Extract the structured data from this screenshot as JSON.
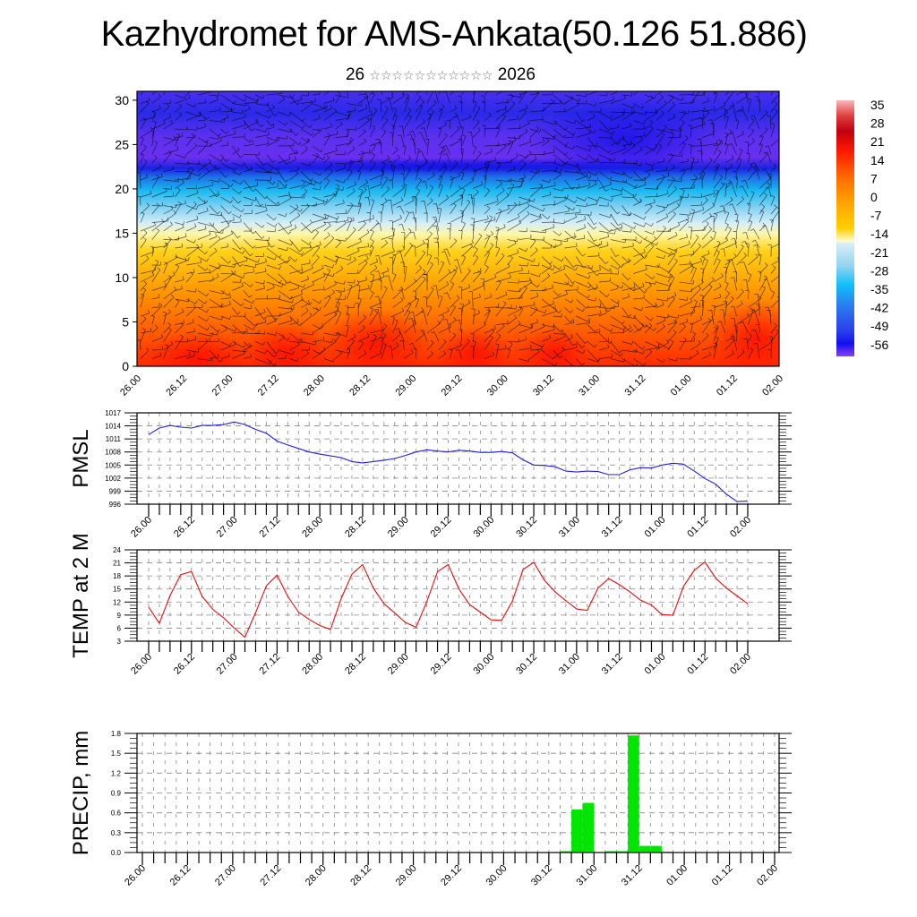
{
  "title": "Kazhydromet for AMS-Ankata(50.126 51.886)",
  "subtitle": {
    "day": "26",
    "month_glyphs": "☆☆☆☆☆☆☆☆☆☆☆",
    "year": "2026"
  },
  "colors": {
    "pmsl_line": "#1f1fe0",
    "temp_line": "#e01010",
    "precip_bar": "#00e600",
    "grid": "#888888"
  },
  "time_ticks": [
    "26.00",
    "26.12",
    "27.00",
    "27.12",
    "28.00",
    "28.12",
    "29.00",
    "29.12",
    "30.00",
    "30.12",
    "31.00",
    "31.12",
    "01.00",
    "01.12",
    "02.00"
  ],
  "chart_data": [
    {
      "type": "heatmap",
      "name": "cross-section",
      "ylabel": "",
      "xlabel": "",
      "ylim": [
        0,
        31
      ],
      "y_ticks": [
        "0",
        "5",
        "10",
        "15",
        "20",
        "25",
        "30"
      ],
      "colorbar": {
        "labels": [
          "35",
          "28",
          "21",
          "14",
          "7",
          "0",
          "-7",
          "-14",
          "-21",
          "-28",
          "-35",
          "-42",
          "-49",
          "-56"
        ],
        "range": [
          -60,
          38
        ]
      },
      "description_levels": {
        "surface_band": "warm (14..28)",
        "tropopause_approx_height": 15
      }
    },
    {
      "type": "line",
      "name": "PMSL",
      "ylabel": "PMSL",
      "ylim": [
        996,
        1017
      ],
      "y_ticks": [
        "996",
        "999",
        "1002",
        "1005",
        "1008",
        "1011",
        "1014",
        "1017"
      ],
      "step_hours": 3,
      "values": [
        1012.0,
        1013.5,
        1014.1,
        1013.7,
        1013.5,
        1014.1,
        1014.1,
        1014.3,
        1014.9,
        1014.3,
        1013.2,
        1012.3,
        1010.5,
        1009.6,
        1008.8,
        1008.0,
        1007.5,
        1007.1,
        1006.7,
        1005.8,
        1005.5,
        1005.8,
        1006.1,
        1006.5,
        1007.2,
        1008.0,
        1008.5,
        1008.2,
        1008.0,
        1008.4,
        1008.2,
        1007.9,
        1007.9,
        1008.1,
        1007.8,
        1006.2,
        1005.0,
        1004.9,
        1004.6,
        1003.6,
        1003.4,
        1003.6,
        1003.5,
        1002.8,
        1002.8,
        1003.9,
        1004.4,
        1004.3,
        1005.0,
        1005.4,
        1005.2,
        1003.6,
        1001.9,
        1000.6,
        998.3,
        996.6,
        996.7
      ]
    },
    {
      "type": "line",
      "name": "TEMP",
      "ylabel": "TEMP at 2 M",
      "ylim": [
        3,
        24
      ],
      "y_ticks": [
        "3",
        "6",
        "9",
        "12",
        "15",
        "18",
        "21",
        "24"
      ],
      "step_hours": 3,
      "values": [
        10.8,
        7.1,
        13.5,
        18.3,
        19.0,
        13.3,
        10.3,
        8.4,
        6.0,
        3.9,
        9.6,
        15.7,
        18.2,
        13.3,
        9.7,
        8.0,
        6.6,
        5.7,
        12.8,
        18.4,
        20.6,
        15.2,
        11.6,
        9.5,
        7.3,
        6.2,
        12.1,
        19.0,
        20.6,
        15.0,
        11.4,
        9.7,
        7.9,
        7.8,
        12.2,
        19.5,
        21.1,
        17.0,
        14.3,
        12.3,
        10.4,
        10.1,
        15.2,
        17.4,
        16.0,
        14.3,
        12.4,
        11.3,
        9.1,
        9.0,
        15.6,
        19.3,
        21.2,
        17.5,
        15.2,
        13.4,
        11.6
      ]
    },
    {
      "type": "bar",
      "name": "PRECIP",
      "ylabel": "PRECIP, mm",
      "ylim": [
        0,
        1.8
      ],
      "y_ticks": [
        "0.0",
        "0.3",
        "0.6",
        "0.9",
        "1.2",
        "1.5",
        "1.8"
      ],
      "step_hours": 3,
      "values": [
        0,
        0,
        0,
        0,
        0,
        0,
        0,
        0,
        0,
        0,
        0,
        0,
        0,
        0,
        0,
        0,
        0,
        0,
        0,
        0,
        0,
        0,
        0,
        0,
        0,
        0,
        0,
        0,
        0,
        0,
        0,
        0,
        0,
        0,
        0,
        0,
        0,
        0.02,
        0.65,
        0.75,
        0,
        0.02,
        0.02,
        1.77,
        0.1,
        0.1,
        0.01,
        0,
        0,
        0,
        0,
        0,
        0,
        0,
        0,
        0
      ]
    }
  ]
}
